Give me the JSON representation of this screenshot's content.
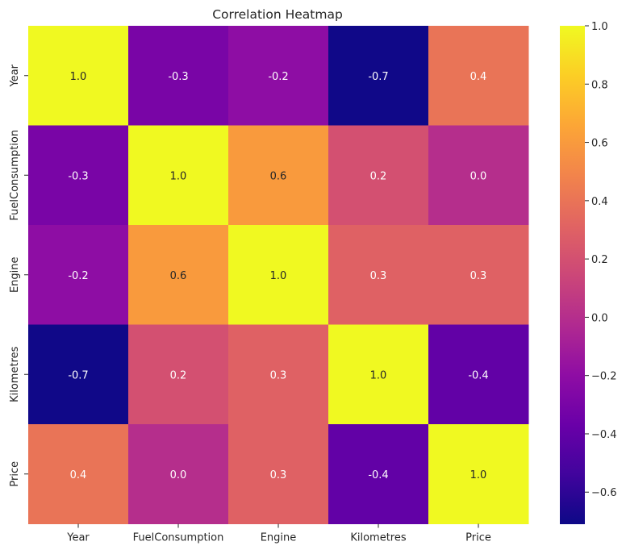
{
  "chart_data": {
    "type": "heatmap",
    "title": "Correlation Heatmap",
    "x_labels": [
      "Year",
      "FuelConsumption",
      "Engine",
      "Kilometres",
      "Price"
    ],
    "y_labels": [
      "Year",
      "FuelConsumption",
      "Engine",
      "Kilometres",
      "Price"
    ],
    "values": [
      [
        1.0,
        -0.3,
        -0.2,
        -0.7,
        0.4
      ],
      [
        -0.3,
        1.0,
        0.6,
        0.2,
        0.0
      ],
      [
        -0.2,
        0.6,
        1.0,
        0.3,
        0.3
      ],
      [
        -0.7,
        0.2,
        0.3,
        1.0,
        -0.4
      ],
      [
        0.4,
        0.0,
        0.3,
        -0.4,
        1.0
      ]
    ],
    "value_labels": [
      [
        "1.0",
        "-0.3",
        "-0.2",
        "-0.7",
        "0.4"
      ],
      [
        "-0.3",
        "1.0",
        "0.6",
        "0.2",
        "0.0"
      ],
      [
        "-0.2",
        "0.6",
        "1.0",
        "0.3",
        "0.3"
      ],
      [
        "-0.7",
        "0.2",
        "0.3",
        "1.0",
        "-0.4"
      ],
      [
        "0.4",
        "0.0",
        "0.3",
        "-0.4",
        "1.0"
      ]
    ],
    "colormap": "plasma",
    "vmin": -0.71,
    "vmax": 1.0,
    "colorbar_ticks": [
      "1.0",
      "0.8",
      "0.6",
      "0.4",
      "0.2",
      "0.0",
      "−0.2",
      "−0.4",
      "−0.6"
    ],
    "colorbar_tick_values": [
      1.0,
      0.8,
      0.6,
      0.4,
      0.2,
      0.0,
      -0.2,
      -0.4,
      -0.6
    ],
    "legend": "colorbar-right"
  }
}
